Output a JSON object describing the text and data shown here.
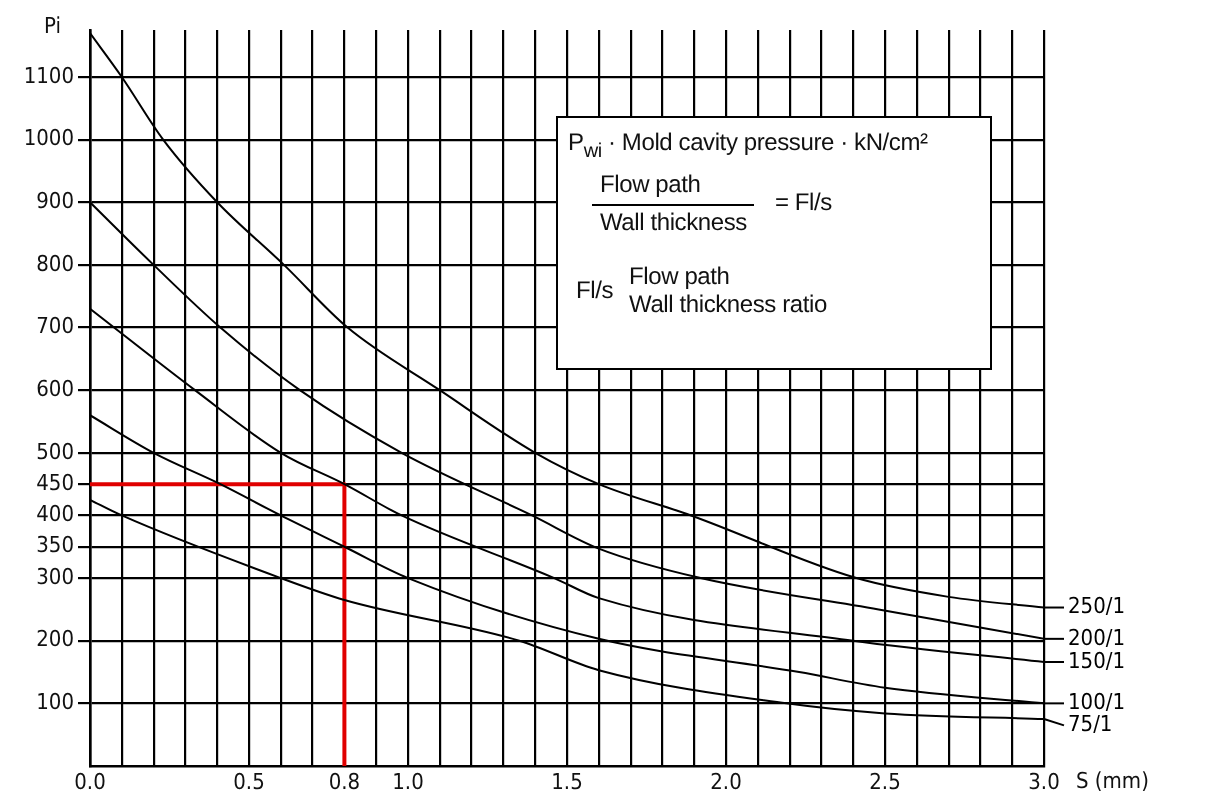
{
  "chart_data": {
    "type": "line",
    "xlabel": "S (mm)",
    "ylabel": "Pi",
    "xlim": [
      0,
      3
    ],
    "ylim": [
      0,
      1175
    ],
    "xticks": [
      {
        "value": 0,
        "label": "0.0"
      },
      {
        "value": 0.1,
        "label": null
      },
      {
        "value": 0.2,
        "label": null
      },
      {
        "value": 0.3,
        "label": null
      },
      {
        "value": 0.4,
        "label": null
      },
      0.5,
      {
        "value": 0.6,
        "label": null
      },
      {
        "value": 0.7,
        "label": null
      },
      0.8,
      {
        "value": 0.9,
        "label": null
      },
      {
        "value": 1,
        "label": "1.0"
      },
      {
        "value": 1.1,
        "label": null
      },
      {
        "value": 1.2,
        "label": null
      },
      {
        "value": 1.3,
        "label": null
      },
      {
        "value": 1.4,
        "label": null
      },
      1.5,
      {
        "value": 1.6,
        "label": null
      },
      {
        "value": 1.7,
        "label": null
      },
      {
        "value": 1.8,
        "label": null
      },
      {
        "value": 1.9,
        "label": null
      },
      {
        "value": 2,
        "label": "2.0"
      },
      {
        "value": 2.1,
        "label": null
      },
      {
        "value": 2.2,
        "label": null
      },
      {
        "value": 2.3,
        "label": null
      },
      {
        "value": 2.4,
        "label": null
      },
      2.5,
      {
        "value": 2.6,
        "label": null
      },
      {
        "value": 2.7,
        "label": null
      },
      {
        "value": 2.8,
        "label": null
      },
      {
        "value": 2.9,
        "label": null
      },
      {
        "value": 3,
        "label": "3.0"
      }
    ],
    "yticks": [
      100,
      200,
      300,
      350,
      400,
      450,
      500,
      600,
      700,
      800,
      900,
      1000,
      1100
    ],
    "grid": true,
    "legend": "right",
    "marker": "none",
    "line_style": "solid",
    "series": [
      {
        "name": "250/1",
        "color": "#000000",
        "x": [
          0,
          0.1,
          0.23,
          0.4,
          0.61,
          0.81,
          1.1,
          1.4,
          1.6,
          1.89,
          2.41,
          2.7,
          3
        ],
        "values": [
          1170,
          1100,
          1000,
          900,
          800,
          700,
          600,
          500,
          450,
          400,
          300,
          270,
          253
        ]
      },
      {
        "name": "200/1",
        "color": "#000000",
        "x": [
          0,
          0.2,
          0.41,
          0.66,
          0.98,
          1.39,
          1.6,
          1.92,
          2.48,
          3
        ],
        "values": [
          900,
          800,
          700,
          600,
          500,
          400,
          347,
          300,
          250,
          203
        ]
      },
      {
        "name": "150/1",
        "color": "#000000",
        "x": [
          0,
          0.33,
          0.6,
          0.8,
          0.98,
          1.46,
          1.6,
          2.4,
          3
        ],
        "values": [
          730,
          600,
          500,
          450,
          400,
          300,
          268,
          200,
          166
        ]
      },
      {
        "name": "100/1",
        "color": "#000000",
        "x": [
          0,
          0.2,
          0.41,
          0.6,
          0.8,
          1,
          1.6,
          2.23,
          2.5,
          3
        ],
        "values": [
          560,
          500,
          450,
          400,
          350,
          300,
          203,
          150,
          125,
          100
        ]
      },
      {
        "name": "75/1",
        "color": "#000000",
        "x": [
          0,
          0.1,
          0.6,
          0.8,
          1.35,
          1.6,
          2.19,
          2.5,
          3
        ],
        "values": [
          425,
          400,
          300,
          265,
          200,
          153,
          100,
          84,
          75
        ]
      },
      {
        "color": "#e00000",
        "x": [
          0,
          0.8,
          0.8
        ],
        "values": [
          450,
          450,
          0
        ]
      }
    ],
    "annotations": [
      "P$_{wi}$ · Mold cavity pressure · kN/cm²",
      "Flow path",
      "Wall thickness",
      "= Fl/s",
      "Fl/s",
      "Flow path",
      "Wall thickness ratio"
    ]
  }
}
